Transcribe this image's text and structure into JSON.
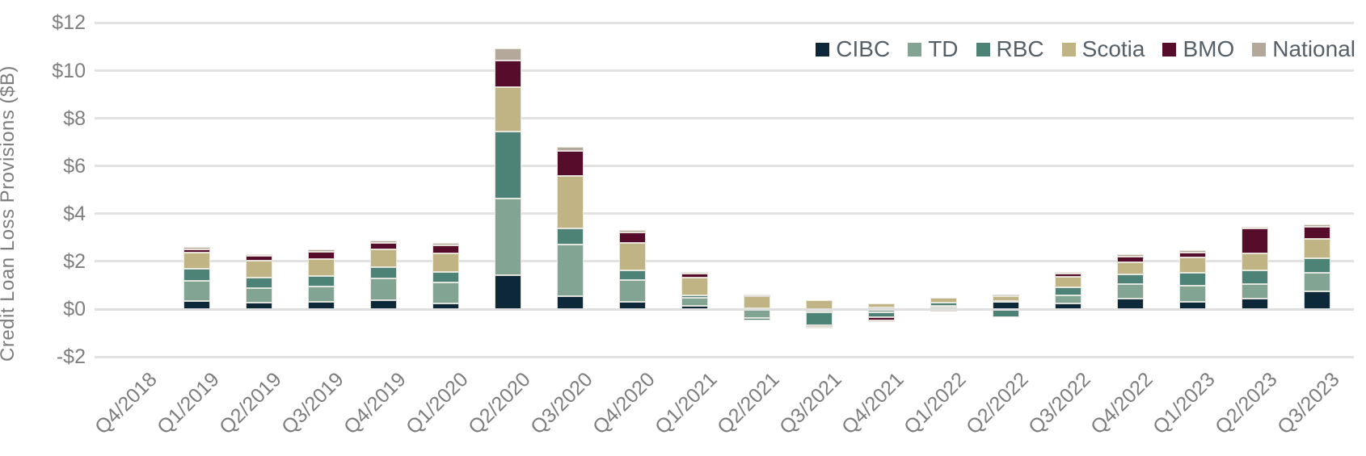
{
  "chart_data": {
    "type": "bar",
    "stacked": true,
    "title": "",
    "ylabel": "Credit Loan Loss Provisions ($B)",
    "xlabel": "",
    "ylim": [
      -2,
      12
    ],
    "grid": true,
    "legend_position": "top-right",
    "y_ticks": [
      {
        "label": "$12",
        "value": 12
      },
      {
        "label": "$10",
        "value": 10
      },
      {
        "label": "$8",
        "value": 8
      },
      {
        "label": "$6",
        "value": 6
      },
      {
        "label": "$4",
        "value": 4
      },
      {
        "label": "$2",
        "value": 2
      },
      {
        "label": "$0",
        "value": 0
      },
      {
        "label": "-$2",
        "value": -2
      }
    ],
    "categories": [
      "Q4/2018",
      "Q1/2019",
      "Q2/2019",
      "Q3/2019",
      "Q4/2019",
      "Q1/2020",
      "Q2/2020",
      "Q3/2020",
      "Q4/2020",
      "Q1/2021",
      "Q2/2021",
      "Q3/2021",
      "Q4/2021",
      "Q1/2022",
      "Q2/2022",
      "Q3/2022",
      "Q4/2022",
      "Q1/2023",
      "Q2/2023",
      "Q3/2023"
    ],
    "series": [
      {
        "name": "CIBC",
        "color": "#0d2839",
        "values": [
          0,
          0.34,
          0.26,
          0.29,
          0.38,
          0.22,
          1.41,
          0.53,
          0.29,
          0.15,
          0.03,
          -0.1,
          0.08,
          0.08,
          0.3,
          0.24,
          0.44,
          0.3,
          0.44,
          0.74
        ]
      },
      {
        "name": "TD",
        "color": "#82a493",
        "values": [
          0,
          0.85,
          0.63,
          0.66,
          0.89,
          0.9,
          3.22,
          2.19,
          0.92,
          0.31,
          -0.38,
          -0.04,
          -0.12,
          0.07,
          0.03,
          0.35,
          0.62,
          0.69,
          0.6,
          0.77
        ]
      },
      {
        "name": "RBC",
        "color": "#4d8277",
        "values": [
          0,
          0.51,
          0.43,
          0.43,
          0.5,
          0.45,
          2.83,
          0.68,
          0.43,
          0.11,
          -0.1,
          -0.54,
          -0.23,
          0.11,
          -0.34,
          0.34,
          0.38,
          0.53,
          0.6,
          0.62
        ]
      },
      {
        "name": "Scotia",
        "color": "#c0b384",
        "values": [
          0,
          0.66,
          0.7,
          0.71,
          0.75,
          0.75,
          1.85,
          2.18,
          1.13,
          0.76,
          0.5,
          0.38,
          0.17,
          0.22,
          0.22,
          0.41,
          0.53,
          0.64,
          0.71,
          0.82
        ]
      },
      {
        "name": "BMO",
        "color": "#560d2c",
        "values": [
          0,
          0.15,
          0.2,
          0.31,
          0.25,
          0.35,
          1.12,
          1.05,
          0.43,
          0.16,
          0.06,
          -0.07,
          -0.13,
          -0.1,
          0.05,
          0.14,
          0.23,
          0.22,
          1.02,
          0.49
        ]
      },
      {
        "name": "National",
        "color": "#b4a89a",
        "values": [
          0,
          0.09,
          0.08,
          0.09,
          0.12,
          0.1,
          0.5,
          0.16,
          0.12,
          0.08,
          0.01,
          -0.04,
          -0.04,
          0.0,
          0.0,
          0.06,
          0.09,
          0.09,
          0.09,
          0.11
        ]
      }
    ]
  }
}
